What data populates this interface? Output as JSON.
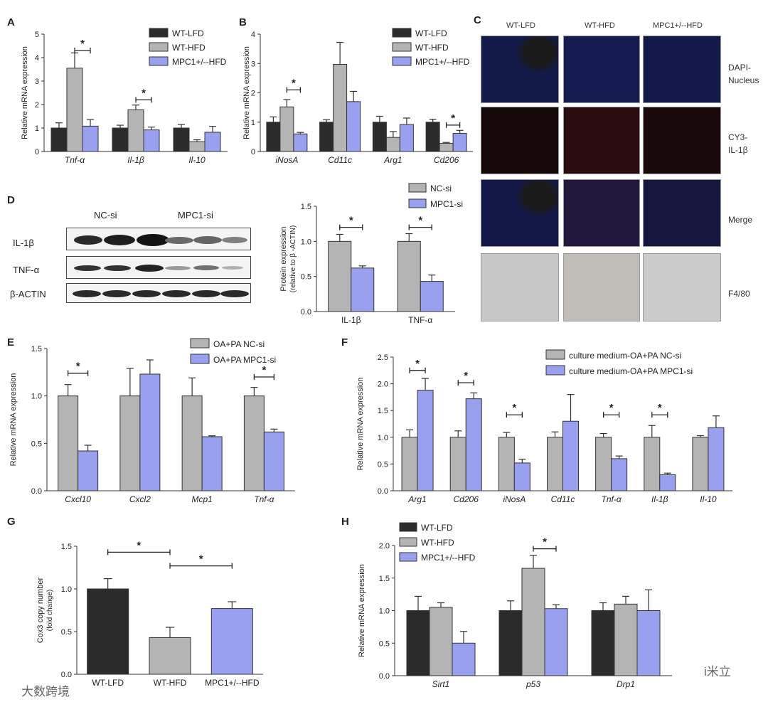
{
  "colors": {
    "wt_lfd": "#2b2b2b",
    "wt_hfd": "#b4b4b4",
    "mpc1": "#9aa0f0",
    "nc_si": "#b4b4b4",
    "mpc1_si": "#9aa0f0"
  },
  "chart_data": [
    {
      "panel": "A",
      "type": "bar",
      "ylabel": "Relative mRNA expression",
      "ylim": [
        0,
        5
      ],
      "yticks": [
        0,
        1,
        2,
        3,
        4,
        5
      ],
      "categories": [
        "Tnf-α",
        "Il-1β",
        "Il-10"
      ],
      "legend": "top-right",
      "series": [
        {
          "name": "WT-LFD",
          "color_key": "wt_lfd",
          "values": [
            1.0,
            1.0,
            1.0
          ],
          "errors": [
            0.22,
            0.12,
            0.15
          ]
        },
        {
          "name": "WT-HFD",
          "color_key": "wt_hfd",
          "values": [
            3.55,
            1.78,
            0.42
          ],
          "errors": [
            0.65,
            0.2,
            0.08
          ]
        },
        {
          "name": "MPC1+/--HFD",
          "color_key": "mpc1",
          "values": [
            1.08,
            0.92,
            0.82
          ],
          "errors": [
            0.28,
            0.12,
            0.25
          ]
        }
      ],
      "sig": [
        {
          "cat": 0,
          "from": 1,
          "to": 2,
          "y": 4.3,
          "label": "*"
        },
        {
          "cat": 1,
          "from": 1,
          "to": 2,
          "y": 2.2,
          "label": "*"
        }
      ]
    },
    {
      "panel": "B",
      "type": "bar",
      "ylabel": "Relative mRNA expression",
      "ylim": [
        0,
        4
      ],
      "yticks": [
        0,
        1,
        2,
        3,
        4
      ],
      "categories": [
        "iNosA",
        "Cd11c",
        "Arg1",
        "Cd206"
      ],
      "legend": "top-right",
      "series": [
        {
          "name": "WT-LFD",
          "color_key": "wt_lfd",
          "values": [
            1.0,
            1.0,
            1.0,
            1.0
          ],
          "errors": [
            0.18,
            0.08,
            0.2,
            0.1
          ]
        },
        {
          "name": "WT-HFD",
          "color_key": "wt_hfd",
          "values": [
            1.52,
            2.97,
            0.48,
            0.28
          ],
          "errors": [
            0.25,
            0.75,
            0.2,
            0.03
          ]
        },
        {
          "name": "MPC1+/--HFD",
          "color_key": "mpc1",
          "values": [
            0.6,
            1.7,
            0.92,
            0.62
          ],
          "errors": [
            0.05,
            0.35,
            0.22,
            0.1
          ]
        }
      ],
      "sig": [
        {
          "cat": 0,
          "from": 1,
          "to": 2,
          "y": 2.1,
          "label": "*"
        },
        {
          "cat": 3,
          "from": 1,
          "to": 2,
          "y": 0.9,
          "label": "*"
        }
      ]
    },
    {
      "panel": "D",
      "type": "bar",
      "ylabel": "Protein expression",
      "ylabel2": "(relative to β -ACTIN)",
      "ylim": [
        0,
        1.5
      ],
      "yticks": [
        0.0,
        0.5,
        1.0,
        1.5
      ],
      "categories": [
        "IL-1β",
        "TNF-α"
      ],
      "legend": "top-right",
      "series": [
        {
          "name": "NC-si",
          "color_key": "nc_si",
          "values": [
            1.0,
            1.0
          ],
          "errors": [
            0.1,
            0.11
          ]
        },
        {
          "name": "MPC1-si",
          "color_key": "mpc1_si",
          "values": [
            0.62,
            0.43
          ],
          "errors": [
            0.03,
            0.09
          ]
        }
      ],
      "sig": [
        {
          "cat": 0,
          "from": 0,
          "to": 1,
          "y": 1.2,
          "label": "*"
        },
        {
          "cat": 1,
          "from": 0,
          "to": 1,
          "y": 1.2,
          "label": "*"
        }
      ]
    },
    {
      "panel": "E",
      "type": "bar",
      "ylabel": "Relative mRNA expression",
      "ylim": [
        0,
        1.5
      ],
      "yticks": [
        0.0,
        0.5,
        1.0,
        1.5
      ],
      "categories": [
        "Cxcl10",
        "Cxcl2",
        "Mcp1",
        "Tnf-α"
      ],
      "legend": "top-right",
      "series": [
        {
          "name": "OA+PA NC-si",
          "color_key": "nc_si",
          "values": [
            1.0,
            1.0,
            1.0,
            1.0
          ],
          "errors": [
            0.12,
            0.29,
            0.19,
            0.09
          ]
        },
        {
          "name": "OA+PA MPC1-si",
          "color_key": "mpc1_si",
          "values": [
            0.42,
            1.23,
            0.57,
            0.62
          ],
          "errors": [
            0.06,
            0.15,
            0.01,
            0.03
          ]
        }
      ],
      "sig": [
        {
          "cat": 0,
          "from": 0,
          "to": 1,
          "y": 1.24,
          "label": "*"
        },
        {
          "cat": 3,
          "from": 0,
          "to": 1,
          "y": 1.2,
          "label": "*"
        }
      ]
    },
    {
      "panel": "F",
      "type": "bar",
      "ylabel": "Relative mRNA expression",
      "ylim": [
        0,
        2.5
      ],
      "yticks": [
        0.0,
        0.5,
        1.0,
        1.5,
        2.0,
        2.5
      ],
      "categories": [
        "Arg1",
        "Cd206",
        "iNosA",
        "Cd11c",
        "Tnf-α",
        "Il-1β",
        "Il-10"
      ],
      "legend": "top-right",
      "series": [
        {
          "name": "culture medium-OA+PA NC-si",
          "color_key": "nc_si",
          "values": [
            1.0,
            1.0,
            1.0,
            1.0,
            1.0,
            1.0,
            1.0
          ],
          "errors": [
            0.14,
            0.12,
            0.09,
            0.1,
            0.07,
            0.22,
            0.03
          ]
        },
        {
          "name": "culture medium-OA+PA MPC1-si",
          "color_key": "mpc1_si",
          "values": [
            1.88,
            1.72,
            0.52,
            1.3,
            0.6,
            0.3,
            1.18
          ],
          "errors": [
            0.22,
            0.11,
            0.07,
            0.5,
            0.05,
            0.03,
            0.22
          ]
        }
      ],
      "sig": [
        {
          "cat": 0,
          "from": 0,
          "to": 1,
          "y": 2.25,
          "label": "*"
        },
        {
          "cat": 1,
          "from": 0,
          "to": 1,
          "y": 2.02,
          "label": "*"
        },
        {
          "cat": 2,
          "from": 0,
          "to": 1,
          "y": 1.42,
          "label": "*"
        },
        {
          "cat": 4,
          "from": 0,
          "to": 1,
          "y": 1.42,
          "label": "*"
        },
        {
          "cat": 5,
          "from": 0,
          "to": 1,
          "y": 1.42,
          "label": "*"
        }
      ]
    },
    {
      "panel": "G",
      "type": "bar",
      "ylabel": "Cox3 copy number",
      "ylabel2": "(fold change)",
      "ylim": [
        0,
        1.5
      ],
      "yticks": [
        0.0,
        0.5,
        1.0,
        1.5
      ],
      "categories": [
        "WT-LFD",
        "WT-HFD",
        "MPC1+/--HFD"
      ],
      "color_keys": [
        "wt_lfd",
        "wt_hfd",
        "mpc1"
      ],
      "values": [
        1.0,
        0.43,
        0.77
      ],
      "errors": [
        0.12,
        0.12,
        0.08
      ],
      "sig": [
        {
          "from": 0,
          "to": 1,
          "y": 1.43,
          "label": "*"
        },
        {
          "from": 1,
          "to": 2,
          "y": 1.27,
          "label": "*"
        }
      ]
    },
    {
      "panel": "H",
      "type": "bar",
      "ylabel": "Relative mRNA expression",
      "ylim": [
        0,
        2.0
      ],
      "yticks": [
        0.0,
        0.5,
        1.0,
        1.5,
        2.0
      ],
      "categories": [
        "Sirt1",
        "p53",
        "Drp1"
      ],
      "legend": "top-left",
      "series": [
        {
          "name": "WT-LFD",
          "color_key": "wt_lfd",
          "values": [
            1.0,
            1.0,
            1.0
          ],
          "errors": [
            0.22,
            0.15,
            0.12
          ]
        },
        {
          "name": "WT-HFD",
          "color_key": "wt_hfd",
          "values": [
            1.05,
            1.65,
            1.1
          ],
          "errors": [
            0.07,
            0.2,
            0.12
          ]
        },
        {
          "name": "MPC1+/--HFD",
          "color_key": "mpc1",
          "values": [
            0.5,
            1.03,
            1.0
          ],
          "errors": [
            0.18,
            0.06,
            0.32
          ]
        }
      ],
      "sig": [
        {
          "cat": 1,
          "from": 1,
          "to": 2,
          "y": 1.95,
          "label": "*"
        }
      ]
    }
  ],
  "panel_c": {
    "letter": "C",
    "column_headers": [
      "WT-LFD",
      "WT-HFD",
      "MPC1+/--HFD"
    ],
    "row_labels": [
      "DAPI-\nNucleus",
      "CY3-\nIL-1β",
      "Merge",
      "F4/80"
    ]
  },
  "panel_d_blot": {
    "group_labels": [
      "NC-si",
      "MPC1-si"
    ],
    "row_labels": [
      "IL-1β",
      "TNF-α",
      "β-ACTIN"
    ]
  },
  "watermark_left": "大数跨境",
  "watermark_right": "i米立"
}
